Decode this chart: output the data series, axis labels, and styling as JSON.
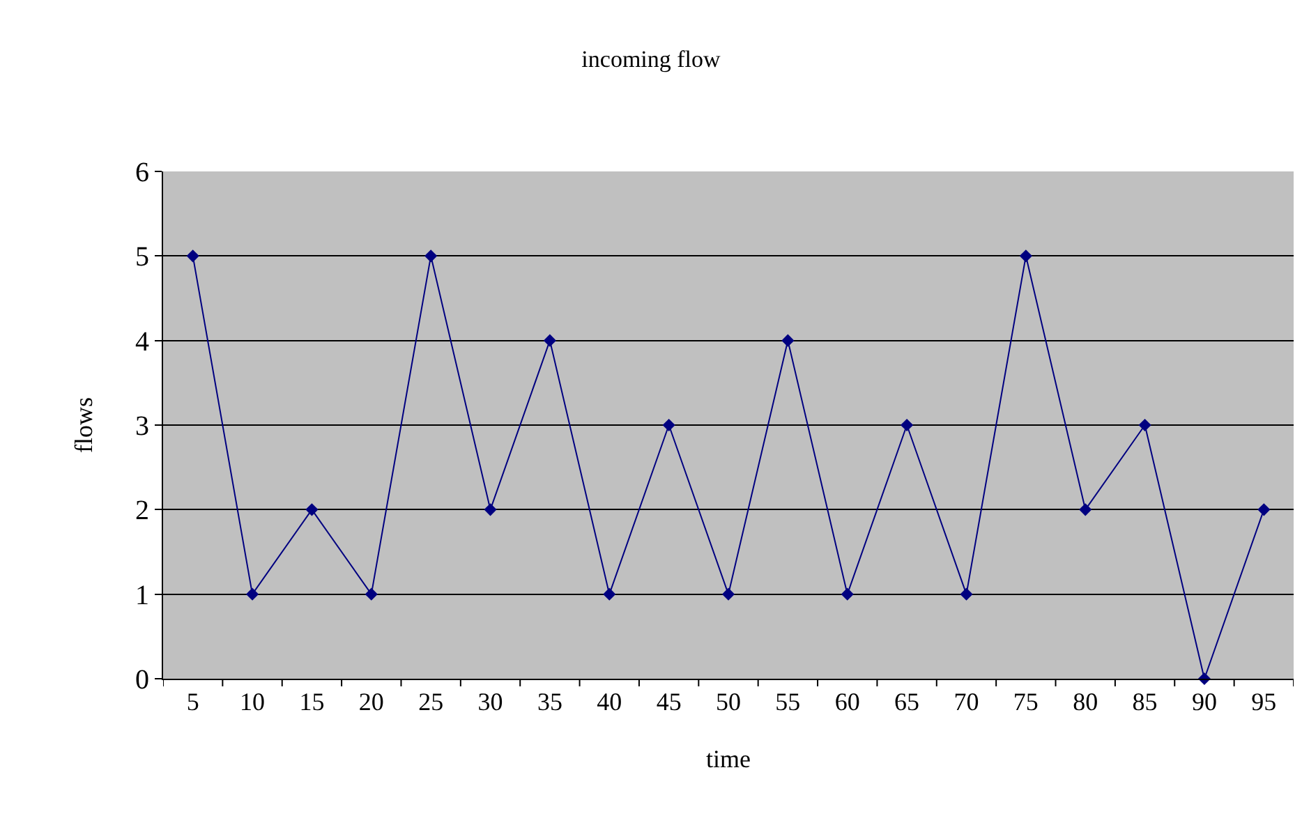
{
  "chart_data": {
    "type": "line",
    "title": "incoming flow",
    "xlabel": "time",
    "ylabel": "flows",
    "categories": [
      "5",
      "10",
      "15",
      "20",
      "25",
      "30",
      "35",
      "40",
      "45",
      "50",
      "55",
      "60",
      "65",
      "70",
      "75",
      "80",
      "85",
      "90",
      "95"
    ],
    "series": [
      {
        "color": "#000080",
        "values": [
          5,
          1,
          2,
          1,
          5,
          2,
          4,
          1,
          3,
          1,
          4,
          1,
          3,
          1,
          5,
          2,
          3,
          0,
          2
        ]
      }
    ],
    "ylim": [
      0,
      6
    ],
    "yticks": [
      0,
      1,
      2,
      3,
      4,
      5,
      6
    ],
    "grid": "y",
    "marker": "diamond",
    "line_style": "solid"
  }
}
